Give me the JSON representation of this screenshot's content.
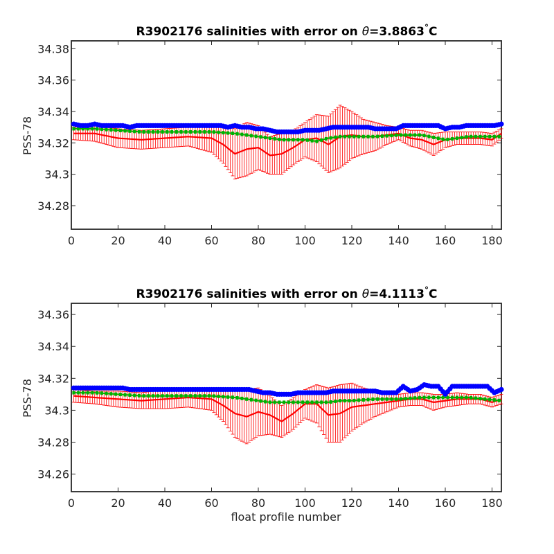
{
  "figure": {
    "xlabel": "float profile number",
    "theta_symbol": "θ",
    "degree_symbol": "°"
  },
  "chart_data": [
    {
      "type": "line",
      "title_prefix": "R3902176 salinities with error on ",
      "theta_value": "=3.8863",
      "unit": "C",
      "ylabel": "PSS-78",
      "xlim": [
        0,
        184
      ],
      "ylim": [
        34.265,
        34.385
      ],
      "xticks": [
        "0",
        "20",
        "40",
        "60",
        "80",
        "100",
        "120",
        "140",
        "160",
        "180"
      ],
      "yticks": [
        "34.38",
        "34.36",
        "34.34",
        "34.32",
        "34.3",
        "34.28"
      ],
      "grid": false,
      "colors": {
        "red": "#ff0000",
        "green": "#00b000",
        "blue": "#0000ff"
      },
      "series": [
        {
          "key": "red",
          "x": [
            1,
            10,
            20,
            30,
            40,
            50,
            60,
            65,
            70,
            75,
            80,
            85,
            90,
            95,
            100,
            105,
            110,
            115,
            120,
            125,
            130,
            135,
            140,
            145,
            150,
            155,
            160,
            165,
            170,
            175,
            180,
            184
          ],
          "y": [
            34.326,
            34.326,
            34.323,
            34.322,
            34.323,
            34.324,
            34.323,
            34.319,
            34.313,
            34.316,
            34.317,
            34.312,
            34.313,
            34.317,
            34.322,
            34.323,
            34.319,
            34.324,
            34.325,
            34.324,
            34.324,
            34.325,
            34.326,
            34.323,
            34.322,
            34.319,
            34.322,
            34.323,
            34.323,
            34.323,
            34.322,
            34.326
          ],
          "err": [
            0.004,
            0.005,
            0.006,
            0.006,
            0.006,
            0.006,
            0.009,
            0.012,
            0.016,
            0.017,
            0.014,
            0.012,
            0.013,
            0.011,
            0.011,
            0.015,
            0.018,
            0.02,
            0.015,
            0.011,
            0.009,
            0.006,
            0.004,
            0.005,
            0.006,
            0.007,
            0.005,
            0.004,
            0.004,
            0.004,
            0.004,
            0.003
          ]
        },
        {
          "key": "green",
          "x": [
            1,
            10,
            20,
            30,
            40,
            50,
            60,
            70,
            75,
            80,
            85,
            90,
            95,
            100,
            105,
            110,
            115,
            120,
            130,
            140,
            150,
            160,
            170,
            184
          ],
          "y": [
            34.329,
            34.329,
            34.328,
            34.327,
            34.327,
            34.327,
            34.327,
            34.326,
            34.325,
            34.324,
            34.323,
            34.322,
            34.322,
            34.322,
            34.321,
            34.323,
            34.324,
            34.324,
            34.324,
            34.325,
            34.325,
            34.322,
            34.324,
            34.324
          ]
        },
        {
          "key": "blue",
          "x": [
            1,
            4,
            7,
            10,
            13,
            16,
            19,
            22,
            25,
            28,
            31,
            34,
            37,
            40,
            43,
            46,
            49,
            52,
            55,
            58,
            61,
            64,
            67,
            70,
            73,
            76,
            79,
            82,
            85,
            88,
            91,
            94,
            97,
            100,
            103,
            106,
            109,
            112,
            115,
            118,
            121,
            124,
            127,
            130,
            133,
            136,
            139,
            142,
            145,
            148,
            151,
            154,
            157,
            160,
            163,
            166,
            169,
            172,
            175,
            178,
            181,
            184
          ],
          "y": [
            34.332,
            34.331,
            34.331,
            34.332,
            34.331,
            34.331,
            34.331,
            34.331,
            34.33,
            34.331,
            34.331,
            34.331,
            34.331,
            34.331,
            34.331,
            34.331,
            34.331,
            34.331,
            34.331,
            34.331,
            34.331,
            34.331,
            34.33,
            34.331,
            34.33,
            34.33,
            34.329,
            34.329,
            34.328,
            34.327,
            34.327,
            34.327,
            34.327,
            34.328,
            34.328,
            34.328,
            34.329,
            34.33,
            34.33,
            34.33,
            34.33,
            34.33,
            34.33,
            34.329,
            34.329,
            34.329,
            34.329,
            34.331,
            34.331,
            34.331,
            34.331,
            34.331,
            34.331,
            34.329,
            34.33,
            34.33,
            34.331,
            34.331,
            34.331,
            34.331,
            34.331,
            34.332
          ]
        }
      ]
    },
    {
      "type": "line",
      "title_prefix": "R3902176 salinities with error on ",
      "theta_value": "=4.1113",
      "unit": "C",
      "ylabel": "PSS-78",
      "xlim": [
        0,
        184
      ],
      "ylim": [
        34.249,
        34.367
      ],
      "xticks": [
        "0",
        "20",
        "40",
        "60",
        "80",
        "100",
        "120",
        "140",
        "160",
        "180"
      ],
      "yticks": [
        "34.36",
        "34.34",
        "34.32",
        "34.3",
        "34.28",
        "34.26"
      ],
      "grid": false,
      "colors": {
        "red": "#ff0000",
        "green": "#00b000",
        "blue": "#0000ff"
      },
      "series": [
        {
          "key": "red",
          "x": [
            1,
            10,
            20,
            30,
            40,
            50,
            60,
            65,
            70,
            75,
            80,
            85,
            90,
            95,
            100,
            105,
            110,
            115,
            120,
            125,
            130,
            135,
            140,
            145,
            150,
            155,
            160,
            165,
            170,
            175,
            180,
            184
          ],
          "y": [
            34.309,
            34.308,
            34.307,
            34.306,
            34.307,
            34.308,
            34.307,
            34.303,
            34.298,
            34.296,
            34.299,
            34.297,
            34.293,
            34.298,
            34.304,
            34.304,
            34.297,
            34.298,
            34.302,
            34.303,
            34.304,
            34.305,
            34.306,
            34.307,
            34.307,
            34.305,
            34.306,
            34.307,
            34.307,
            34.307,
            34.305,
            34.307
          ],
          "err": [
            0.004,
            0.004,
            0.005,
            0.005,
            0.006,
            0.006,
            0.007,
            0.01,
            0.015,
            0.017,
            0.015,
            0.012,
            0.01,
            0.01,
            0.009,
            0.012,
            0.017,
            0.018,
            0.015,
            0.011,
            0.008,
            0.006,
            0.004,
            0.004,
            0.004,
            0.005,
            0.004,
            0.004,
            0.003,
            0.003,
            0.003,
            0.003
          ]
        },
        {
          "key": "green",
          "x": [
            1,
            10,
            20,
            30,
            40,
            50,
            60,
            70,
            75,
            80,
            85,
            90,
            95,
            100,
            105,
            110,
            115,
            120,
            130,
            140,
            150,
            160,
            170,
            184
          ],
          "y": [
            34.311,
            34.311,
            34.31,
            34.309,
            34.309,
            34.309,
            34.309,
            34.308,
            34.307,
            34.306,
            34.305,
            34.305,
            34.305,
            34.305,
            34.305,
            34.305,
            34.306,
            34.306,
            34.307,
            34.307,
            34.308,
            34.308,
            34.308,
            34.306
          ]
        },
        {
          "key": "blue",
          "x": [
            1,
            4,
            7,
            10,
            13,
            16,
            19,
            22,
            25,
            28,
            31,
            34,
            37,
            40,
            43,
            46,
            49,
            52,
            55,
            58,
            61,
            64,
            67,
            70,
            73,
            76,
            79,
            82,
            85,
            88,
            91,
            94,
            97,
            100,
            103,
            106,
            109,
            112,
            115,
            118,
            121,
            124,
            127,
            130,
            133,
            136,
            139,
            142,
            145,
            148,
            151,
            154,
            157,
            160,
            163,
            166,
            169,
            172,
            175,
            178,
            181,
            184
          ],
          "y": [
            34.314,
            34.314,
            34.314,
            34.314,
            34.314,
            34.314,
            34.314,
            34.314,
            34.313,
            34.313,
            34.313,
            34.313,
            34.313,
            34.313,
            34.313,
            34.313,
            34.313,
            34.313,
            34.313,
            34.313,
            34.313,
            34.313,
            34.313,
            34.313,
            34.313,
            34.313,
            34.312,
            34.311,
            34.311,
            34.31,
            34.31,
            34.31,
            34.311,
            34.311,
            34.311,
            34.311,
            34.311,
            34.312,
            34.312,
            34.312,
            34.312,
            34.312,
            34.312,
            34.312,
            34.311,
            34.311,
            34.311,
            34.315,
            34.312,
            34.313,
            34.316,
            34.315,
            34.315,
            34.31,
            34.315,
            34.315,
            34.315,
            34.315,
            34.315,
            34.315,
            34.311,
            34.313
          ]
        }
      ]
    }
  ]
}
